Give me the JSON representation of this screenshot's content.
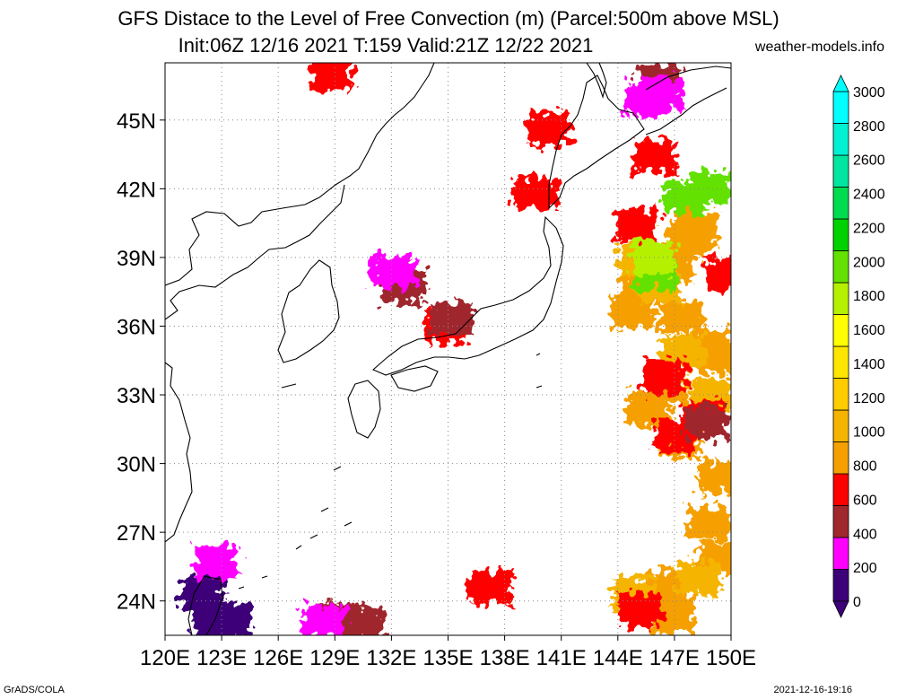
{
  "title": {
    "line1": "GFS Distace to the Level of Free Convection (m) (Parcel:500m above MSL)",
    "line2": "Init:06Z 12/16 2021 T:159 Valid:21Z 12/22 2021",
    "site": "weather-models.info"
  },
  "map": {
    "lon_range": [
      120,
      150
    ],
    "lat_range": [
      22.5,
      47.5
    ],
    "lon_labels": [
      "120E",
      "123E",
      "126E",
      "129E",
      "132E",
      "135E",
      "138E",
      "141E",
      "144E",
      "147E",
      "150E"
    ],
    "lat_labels": [
      "24N",
      "27N",
      "30N",
      "33N",
      "36N",
      "39N",
      "42N",
      "45N"
    ],
    "lat_values": [
      24,
      27,
      30,
      33,
      36,
      39,
      42,
      45
    ]
  },
  "colorbar": {
    "labels": [
      "0",
      "200",
      "400",
      "600",
      "800",
      "1000",
      "1200",
      "1400",
      "1600",
      "1800",
      "2000",
      "2200",
      "2400",
      "2600",
      "2800",
      "3000"
    ],
    "colors": [
      "#3c0078",
      "#ff00ff",
      "#a0282d",
      "#ff0000",
      "#f5a000",
      "#f5b400",
      "#ffcc00",
      "#ffe600",
      "#ffff00",
      "#b4f000",
      "#64e100",
      "#00d200",
      "#00dc50",
      "#00e6a0",
      "#00f0d2",
      "#00ffff"
    ]
  },
  "fields": [
    {
      "color": "#f5a000",
      "cells": [
        [
          148.2,
          40.2
        ],
        [
          147.6,
          39.7
        ],
        [
          146.8,
          38.6
        ],
        [
          145.3,
          37.6
        ],
        [
          144.8,
          36.6
        ],
        [
          147.4,
          36.4
        ],
        [
          148.8,
          35.1
        ],
        [
          149.3,
          34.6
        ],
        [
          146.6,
          33.2
        ],
        [
          145.6,
          32.4
        ],
        [
          147.3,
          31.0
        ],
        [
          149.4,
          29.4
        ],
        [
          148.8,
          27.4
        ],
        [
          149.5,
          25.9
        ],
        [
          146.8,
          24.6
        ],
        [
          145.8,
          23.8
        ],
        [
          146.9,
          23.3
        ]
      ]
    },
    {
      "color": "#f5b400",
      "cells": [
        [
          145.2,
          38.9
        ],
        [
          146.2,
          37.7
        ],
        [
          147.4,
          34.9
        ],
        [
          149.0,
          33.0
        ],
        [
          148.3,
          25.0
        ],
        [
          144.8,
          24.3
        ]
      ]
    },
    {
      "color": "#ff0000",
      "cells": [
        [
          145.0,
          40.4
        ],
        [
          149.8,
          38.3
        ],
        [
          146.5,
          33.8
        ],
        [
          148.5,
          32.0
        ],
        [
          147.1,
          31.2
        ],
        [
          134.9,
          36.0
        ],
        [
          139.6,
          41.8
        ],
        [
          140.3,
          44.6
        ],
        [
          146.0,
          43.4
        ],
        [
          145.2,
          23.6
        ],
        [
          137.3,
          24.6
        ],
        [
          128.8,
          47.0
        ]
      ]
    },
    {
      "color": "#a0282d",
      "cells": [
        [
          148.7,
          31.8
        ],
        [
          132.7,
          37.7
        ],
        [
          135.2,
          36.3
        ],
        [
          129.3,
          23.2
        ],
        [
          130.5,
          23.0
        ],
        [
          146.2,
          46.7
        ]
      ]
    },
    {
      "color": "#ff00ff",
      "cells": [
        [
          146.3,
          46.2
        ],
        [
          145.5,
          45.9
        ],
        [
          132.1,
          38.4
        ],
        [
          122.7,
          25.7
        ],
        [
          128.4,
          23.1
        ]
      ]
    },
    {
      "color": "#3c0078",
      "cells": [
        [
          122.0,
          24.3
        ],
        [
          122.6,
          22.9
        ],
        [
          123.4,
          23.2
        ]
      ]
    },
    {
      "color": "#64e100",
      "cells": [
        [
          146.0,
          38.3
        ],
        [
          147.5,
          41.6
        ],
        [
          148.9,
          42.0
        ]
      ]
    },
    {
      "color": "#b4f000",
      "cells": [
        [
          145.9,
          39.0
        ]
      ]
    }
  ]
}
